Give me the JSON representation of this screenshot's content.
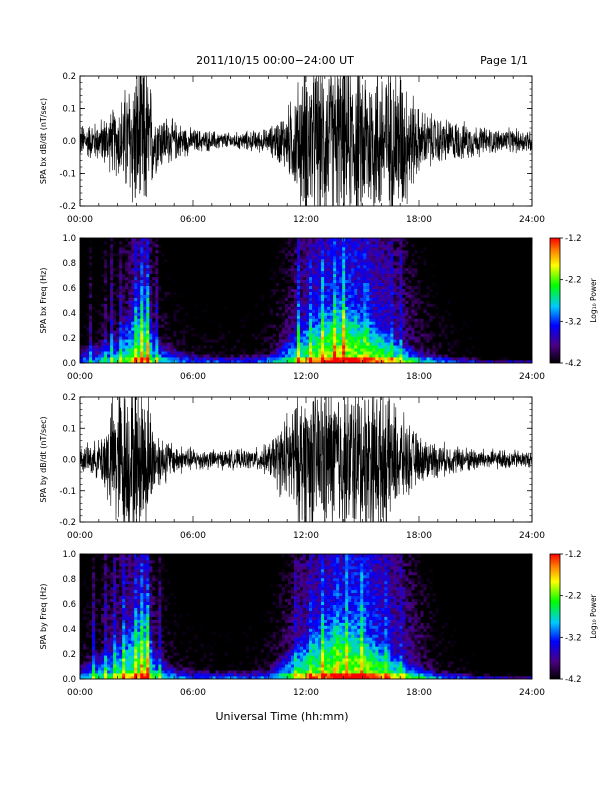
{
  "header": {
    "title": "2011/10/15   00:00−24:00 UT",
    "page": "Page 1/1"
  },
  "xlabel": "Universal Time (hh:mm)",
  "xtick_labels": [
    "00:00",
    "06:00",
    "12:00",
    "18:00",
    "24:00"
  ],
  "colorbar": {
    "label": "Log₁₀ Power",
    "tick_labels": [
      "-1.2",
      "-2.2",
      "-3.2",
      "-4.2"
    ],
    "range": [
      -4.2,
      -1.2
    ],
    "colormap": [
      "#000000",
      "#4b0082",
      "#0000ff",
      "#00c8ff",
      "#00ff00",
      "#ffff00",
      "#ff8000",
      "#ff0000"
    ]
  },
  "chart_data": [
    {
      "type": "line",
      "ylabel": "SPA bx dB/dt (nT/sec)",
      "xlim": [
        0,
        24
      ],
      "ylim": [
        -0.2,
        0.2
      ],
      "ytick_labels": [
        "0.2",
        "0.1",
        "0.0",
        "-0.1",
        "-0.2"
      ],
      "series": [
        {
          "x": [
            0,
            1,
            2,
            3,
            3.5,
            4,
            5,
            6,
            7,
            8,
            9,
            10,
            11,
            12,
            13,
            14,
            15,
            16,
            17,
            18,
            19,
            20,
            21,
            22,
            23,
            24
          ],
          "amplitude": [
            0.04,
            0.05,
            0.09,
            0.2,
            0.2,
            0.08,
            0.05,
            0.03,
            0.025,
            0.02,
            0.025,
            0.03,
            0.08,
            0.2,
            0.2,
            0.2,
            0.2,
            0.2,
            0.2,
            0.08,
            0.06,
            0.05,
            0.04,
            0.03,
            0.03,
            0.03
          ]
        }
      ]
    },
    {
      "type": "heatmap",
      "ylabel": "SPA bx Freq (Hz)",
      "xlim": [
        0,
        24
      ],
      "ylim": [
        0.0,
        1.0
      ],
      "ytick_labels": [
        "1.0",
        "0.8",
        "0.6",
        "0.4",
        "0.2",
        "0.0"
      ],
      "x": [
        0,
        1,
        2,
        3,
        3.5,
        4,
        5,
        6,
        7,
        8,
        9,
        10,
        11,
        12,
        13,
        14,
        15,
        16,
        17,
        18,
        19,
        20,
        21,
        22,
        23,
        24
      ],
      "base_log_power": [
        -3.8,
        -3.7,
        -3.5,
        -3.0,
        -2.9,
        -3.5,
        -3.7,
        -3.8,
        -3.8,
        -3.8,
        -3.8,
        -3.7,
        -3.4,
        -3.0,
        -2.7,
        -2.6,
        -2.7,
        -2.9,
        -3.2,
        -3.5,
        -3.7,
        -3.8,
        -3.9,
        -4.0,
        -4.0,
        -4.0
      ],
      "band_top_hz": [
        0.15,
        0.2,
        0.3,
        0.6,
        0.7,
        0.25,
        0.15,
        0.1,
        0.08,
        0.08,
        0.08,
        0.1,
        0.25,
        0.4,
        0.5,
        0.55,
        0.45,
        0.35,
        0.2,
        0.12,
        0.08,
        0.06,
        0.05,
        0.04,
        0.04,
        0.04
      ],
      "vertical_streaks_hours": [
        0.6,
        1.3,
        1.7,
        2.2,
        3.0,
        3.3,
        3.6,
        4.1,
        11.6,
        12.2,
        12.9,
        13.5,
        14.0,
        15.2,
        16.5,
        17.0
      ],
      "color_range": [
        -4.2,
        -1.2
      ]
    },
    {
      "type": "line",
      "ylabel": "SPA by dB/dt (nT/sec)",
      "xlim": [
        0,
        24
      ],
      "ylim": [
        -0.2,
        0.2
      ],
      "ytick_labels": [
        "0.2",
        "0.1",
        "0.0",
        "-0.1",
        "-0.2"
      ],
      "series": [
        {
          "x": [
            0,
            1,
            2,
            3,
            3.5,
            4,
            5,
            6,
            7,
            8,
            9,
            10,
            11,
            12,
            13,
            14,
            15,
            16,
            17,
            18,
            19,
            20,
            21,
            22,
            23,
            24
          ],
          "amplitude": [
            0.03,
            0.05,
            0.2,
            0.2,
            0.2,
            0.08,
            0.04,
            0.03,
            0.025,
            0.025,
            0.025,
            0.04,
            0.12,
            0.2,
            0.2,
            0.2,
            0.2,
            0.2,
            0.12,
            0.06,
            0.045,
            0.035,
            0.03,
            0.025,
            0.025,
            0.02
          ]
        }
      ]
    },
    {
      "type": "heatmap",
      "ylabel": "SPA by Freq (Hz)",
      "xlim": [
        0,
        24
      ],
      "ylim": [
        0.0,
        1.0
      ],
      "ytick_labels": [
        "1.0",
        "0.8",
        "0.6",
        "0.4",
        "0.2",
        "0.0"
      ],
      "x": [
        0,
        1,
        2,
        3,
        3.5,
        4,
        5,
        6,
        7,
        8,
        9,
        10,
        11,
        12,
        13,
        14,
        15,
        16,
        17,
        18,
        19,
        20,
        21,
        22,
        23,
        24
      ],
      "base_log_power": [
        -3.7,
        -3.5,
        -3.2,
        -2.9,
        -2.8,
        -3.4,
        -3.7,
        -3.8,
        -3.8,
        -3.8,
        -3.8,
        -3.7,
        -3.4,
        -3.0,
        -2.8,
        -2.6,
        -2.5,
        -2.8,
        -3.1,
        -3.4,
        -3.7,
        -3.8,
        -3.9,
        -4.0,
        -4.0,
        -4.0
      ],
      "band_top_hz": [
        0.15,
        0.25,
        0.35,
        0.6,
        0.7,
        0.25,
        0.12,
        0.1,
        0.08,
        0.08,
        0.08,
        0.1,
        0.25,
        0.4,
        0.55,
        0.55,
        0.4,
        0.3,
        0.2,
        0.12,
        0.08,
        0.06,
        0.05,
        0.04,
        0.04,
        0.04
      ],
      "vertical_streaks_hours": [
        0.7,
        1.4,
        1.8,
        2.3,
        3.0,
        3.3,
        3.6,
        4.2,
        11.5,
        12.3,
        12.9,
        13.6,
        14.2,
        15.0,
        16.3,
        17.1
      ],
      "color_range": [
        -4.2,
        -1.2
      ]
    }
  ]
}
